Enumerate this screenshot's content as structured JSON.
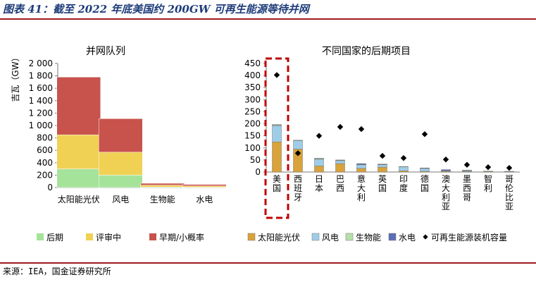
{
  "figure": {
    "title": "图表 41：截至 2022 年底美国约 200GW 可再生能源等待并网",
    "source": "来源：IEA，国金证券研究所"
  },
  "colors": {
    "rule": "#9e1b20",
    "late_stage": "#a6e39a",
    "under_review": "#f0d154",
    "early_stage": "#c8524c",
    "solar": "#d9a23a",
    "wind": "#9fcde8",
    "bio": "#b5e0a8",
    "hydro": "#5a6fb5",
    "marker": "#000000",
    "highlight": "#c00000"
  },
  "chart_data": [
    {
      "type": "bar",
      "stacked": true,
      "title": "并网队列",
      "ylabel": "吉瓦（GW）",
      "ylim": [
        0,
        2000
      ],
      "yticks": [
        "0",
        "200",
        "400",
        "600",
        "800",
        "1 000",
        "1 200",
        "1 400",
        "1 600",
        "1 800",
        "2 000"
      ],
      "categories": [
        "太阳能光伏",
        "风电",
        "生物能",
        "水电"
      ],
      "series": [
        {
          "name": "后期",
          "color": "#a6e39a",
          "values": [
            300,
            200,
            8,
            5
          ]
        },
        {
          "name": "评审中",
          "color": "#f0d154",
          "values": [
            550,
            370,
            30,
            20
          ]
        },
        {
          "name": "早期/小概率",
          "color": "#c8524c",
          "values": [
            930,
            540,
            30,
            25
          ]
        }
      ],
      "legend_position": "bottom"
    },
    {
      "type": "bar",
      "stacked": true,
      "title": "不同国家的后期项目",
      "ylim": [
        0,
        450
      ],
      "yticks": [
        "0",
        "50",
        "100",
        "150",
        "200",
        "250",
        "300",
        "350",
        "400",
        "450"
      ],
      "categories": [
        "美国",
        "西班牙",
        "日本",
        "巴西",
        "意大利",
        "英国",
        "印度",
        "德国",
        "澳大利亚",
        "墨西哥",
        "智利",
        "哥伦比亚"
      ],
      "series": [
        {
          "name": "太阳能光伏",
          "color": "#d9a23a",
          "values": [
            125,
            95,
            25,
            35,
            15,
            20,
            5,
            3,
            3,
            2,
            2,
            2
          ]
        },
        {
          "name": "风电",
          "color": "#9fcde8",
          "values": [
            67,
            35,
            28,
            12,
            15,
            10,
            17,
            12,
            2,
            4,
            2,
            1
          ]
        },
        {
          "name": "生物能",
          "color": "#b5e0a8",
          "values": [
            3,
            2,
            3,
            2,
            1,
            2,
            1,
            1,
            0,
            1,
            0,
            0
          ]
        },
        {
          "name": "水电",
          "color": "#5a6fb5",
          "values": [
            2,
            0,
            1,
            1,
            4,
            1,
            0,
            1,
            5,
            1,
            0,
            0
          ]
        }
      ],
      "markers": {
        "name": "可再生能源装机容量",
        "values": [
          402,
          78,
          150,
          187,
          178,
          67,
          58,
          157,
          52,
          30,
          20,
          17
        ]
      },
      "legend_position": "bottom",
      "highlight_category": "美国"
    }
  ]
}
